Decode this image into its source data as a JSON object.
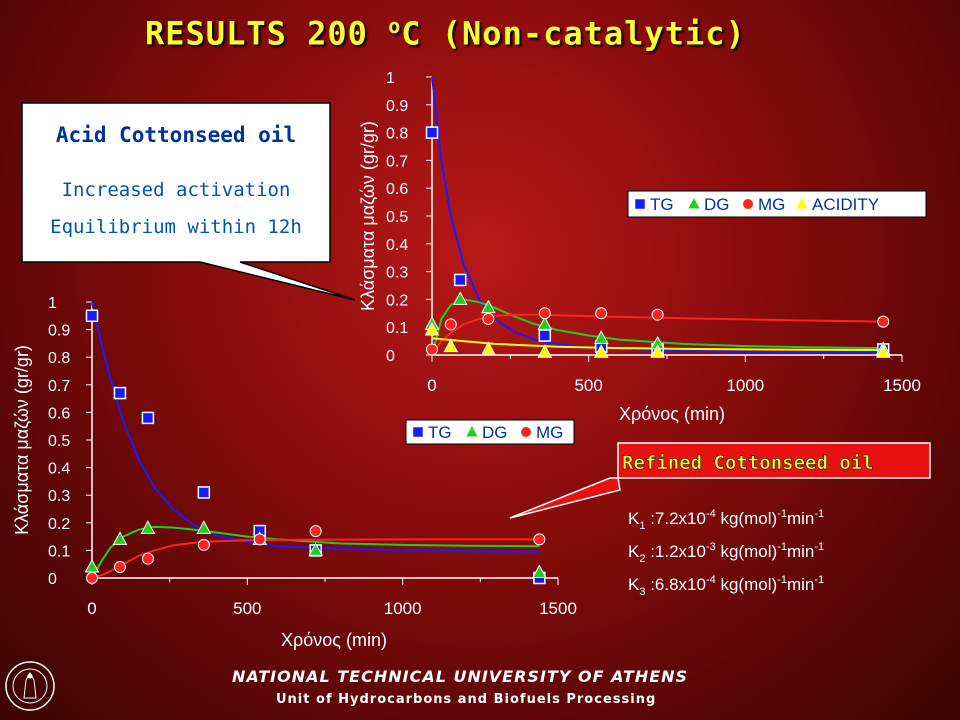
{
  "slide": {
    "title_main": "RESULTS 200 ",
    "title_sup": "o",
    "title_rest": "C (Non-catalytic)",
    "footer_university": "NATIONAL TECHNICAL UNIVERSITY OF ATHENS",
    "footer_unit": "Unit of Hydrocarbons and Biofuels Processing"
  },
  "callout_acid": {
    "heading": "Acid Cottonseed oil",
    "line1": "Increased activation",
    "line2": "Equilibrium within 12h"
  },
  "callout_refined": {
    "heading": "Refined Cottonseed oil",
    "k1_label": "K",
    "k1_sub": "1",
    "k1_pre": " :7.2x10",
    "k1_exp": "-4",
    "k1_unit": " kg(mol)",
    "k1_unit_exp": "-1",
    "k1_min": "min",
    "k1_min_exp": "-1",
    "k2_label": "K",
    "k2_sub": "2",
    "k2_pre": " :1.2x10",
    "k2_exp": "-3",
    "k2_unit": " kg(mol)",
    "k2_unit_exp": "-1",
    "k2_min": "min",
    "k2_min_exp": "-1",
    "k3_label": "K",
    "k3_sub": "3",
    "k3_pre": " :6.8x10",
    "k3_exp": "-4",
    "k3_unit": " kg(mol)",
    "k3_unit_exp": "-1",
    "k3_min": "min",
    "k3_min_exp": "-1"
  },
  "colors": {
    "tg": "#1a1aff",
    "dg": "#22cc22",
    "mg": "#ff2222",
    "acidity": "#ffff00",
    "title": "#ffff33"
  },
  "chart_data": [
    {
      "type": "scatter",
      "name": "acid-cottonseed-chart",
      "xlabel": "Χρόνος (min)",
      "ylabel": "Κλάσματα μαζών (gr/gr)",
      "xlim": [
        0,
        1500
      ],
      "ylim": [
        0,
        1
      ],
      "xticks": [
        "0",
        "500",
        "1000",
        "1500"
      ],
      "yticks": [
        "0",
        "0.1",
        "0.2",
        "0.3",
        "0.4",
        "0.5",
        "0.6",
        "0.7",
        "0.8",
        "0.9",
        "1"
      ],
      "legend": [
        "TG",
        "DG",
        "MG"
      ],
      "legend_position": "bottom-right",
      "series": [
        {
          "name": "TG",
          "marker": "square",
          "x": [
            0,
            90,
            180,
            360,
            540,
            720,
            1440
          ],
          "y": [
            0.95,
            0.67,
            0.58,
            0.31,
            0.17,
            0.1,
            0.0
          ]
        },
        {
          "name": "DG",
          "marker": "triangle",
          "x": [
            0,
            90,
            180,
            360,
            540,
            720,
            1440
          ],
          "y": [
            0.04,
            0.14,
            0.18,
            0.18,
            0.14,
            0.1,
            0.02
          ]
        },
        {
          "name": "MG",
          "marker": "circle",
          "x": [
            0,
            90,
            180,
            360,
            540,
            720,
            1440
          ],
          "y": [
            0.0,
            0.04,
            0.07,
            0.12,
            0.14,
            0.17,
            0.14
          ]
        }
      ],
      "fits": [
        {
          "name": "TG",
          "x": [
            0,
            30,
            60,
            100,
            150,
            200,
            260,
            330,
            400,
            500,
            600,
            800,
            1000,
            1200,
            1440
          ],
          "y": [
            1.0,
            0.85,
            0.72,
            0.57,
            0.43,
            0.33,
            0.25,
            0.19,
            0.155,
            0.13,
            0.115,
            0.105,
            0.1,
            0.097,
            0.095
          ]
        },
        {
          "name": "DG",
          "x": [
            0,
            30,
            60,
            100,
            150,
            200,
            260,
            330,
            400,
            500,
            600,
            800,
            1000,
            1200,
            1440
          ],
          "y": [
            0.0,
            0.06,
            0.11,
            0.15,
            0.175,
            0.185,
            0.183,
            0.175,
            0.165,
            0.15,
            0.14,
            0.125,
            0.12,
            0.117,
            0.115
          ]
        },
        {
          "name": "MG",
          "x": [
            0,
            30,
            60,
            100,
            150,
            200,
            260,
            330,
            400,
            500,
            600,
            800,
            1000,
            1200,
            1440
          ],
          "y": [
            0.0,
            0.01,
            0.025,
            0.05,
            0.08,
            0.1,
            0.118,
            0.128,
            0.133,
            0.137,
            0.138,
            0.139,
            0.14,
            0.14,
            0.14
          ]
        }
      ]
    },
    {
      "type": "scatter",
      "name": "refined-cottonseed-chart",
      "xlabel": "Χρόνος (min)",
      "ylabel": "Κλάσματα μαζών (gr/gr)",
      "xlim": [
        0,
        1500
      ],
      "ylim": [
        0,
        1
      ],
      "xticks": [
        "0",
        "500",
        "1000",
        "1500"
      ],
      "yticks": [
        "0",
        "0.1",
        "0.2",
        "0.3",
        "0.4",
        "0.5",
        "0.6",
        "0.7",
        "0.8",
        "0.9",
        "1"
      ],
      "legend": [
        "TG",
        "DG",
        "MG",
        "ACIDITY"
      ],
      "legend_position": "top-right",
      "series": [
        {
          "name": "TG",
          "marker": "square",
          "x": [
            0,
            90,
            360,
            540,
            720,
            1440
          ],
          "y": [
            0.8,
            0.27,
            0.07,
            0.03,
            0.02,
            0.02
          ]
        },
        {
          "name": "DG",
          "marker": "triangle",
          "x": [
            0,
            90,
            180,
            360,
            540,
            720,
            1440
          ],
          "y": [
            0.11,
            0.2,
            0.17,
            0.11,
            0.06,
            0.04,
            0.02
          ]
        },
        {
          "name": "MG",
          "marker": "circle",
          "x": [
            0,
            60,
            180,
            360,
            540,
            720,
            1440
          ],
          "y": [
            0.02,
            0.11,
            0.13,
            0.15,
            0.15,
            0.145,
            0.12
          ]
        },
        {
          "name": "ACIDITY",
          "marker": "triangle",
          "x": [
            0,
            60,
            180,
            360,
            540,
            720,
            1440
          ],
          "y": [
            0.09,
            0.03,
            0.02,
            0.01,
            0.01,
            0.01,
            0.01
          ]
        }
      ],
      "fits": [
        {
          "name": "TG",
          "x": [
            0,
            30,
            60,
            100,
            150,
            200,
            260,
            330,
            400,
            500,
            600,
            800,
            1000,
            1200,
            1440
          ],
          "y": [
            1.0,
            0.7,
            0.5,
            0.33,
            0.2,
            0.13,
            0.085,
            0.055,
            0.04,
            0.028,
            0.022,
            0.015,
            0.012,
            0.01,
            0.009
          ]
        },
        {
          "name": "DG",
          "x": [
            0,
            30,
            60,
            100,
            150,
            200,
            260,
            330,
            400,
            500,
            600,
            800,
            1000,
            1200,
            1440
          ],
          "y": [
            0.0,
            0.13,
            0.18,
            0.2,
            0.19,
            0.17,
            0.14,
            0.11,
            0.09,
            0.07,
            0.055,
            0.04,
            0.032,
            0.028,
            0.025
          ]
        },
        {
          "name": "MG",
          "x": [
            0,
            30,
            60,
            100,
            150,
            200,
            260,
            330,
            400,
            500,
            600,
            800,
            1000,
            1200,
            1440
          ],
          "y": [
            0.0,
            0.05,
            0.08,
            0.11,
            0.13,
            0.14,
            0.145,
            0.145,
            0.143,
            0.14,
            0.137,
            0.132,
            0.128,
            0.124,
            0.12
          ]
        },
        {
          "name": "ACIDITY",
          "x": [
            0,
            100,
            200,
            400,
            600,
            800,
            1000,
            1200,
            1440
          ],
          "y": [
            0.06,
            0.05,
            0.04,
            0.03,
            0.025,
            0.022,
            0.02,
            0.019,
            0.018
          ]
        }
      ]
    }
  ]
}
